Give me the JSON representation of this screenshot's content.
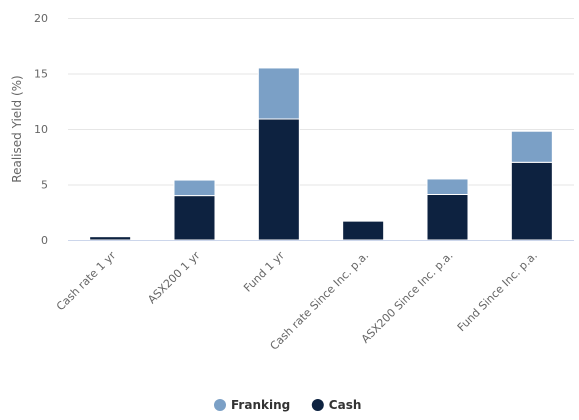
{
  "chart_data": {
    "type": "bar",
    "stacked": true,
    "title": "",
    "xlabel": "",
    "ylabel": "Realised Yield (%)",
    "ylim": [
      0,
      20
    ],
    "yticks": [
      "0",
      "5",
      "10",
      "15",
      "20"
    ],
    "categories": [
      "Cash rate 1 yr",
      "ASX200 1 yr",
      "Fund 1 yr",
      "Cash rate Since Inc. p.a.",
      "ASX200 Since Inc. p.a.",
      "Fund Since Inc. p.a."
    ],
    "series": [
      {
        "name": "Cash",
        "color": "#0d2240",
        "values": [
          0.3,
          4.0,
          10.9,
          1.7,
          4.1,
          7.0
        ]
      },
      {
        "name": "Franking",
        "color": "#7ba0c6",
        "values": [
          0.0,
          1.4,
          4.6,
          0.0,
          1.4,
          2.8
        ]
      }
    ],
    "legend": {
      "position": "bottom",
      "order": [
        "Franking",
        "Cash"
      ]
    },
    "grid": true,
    "colors": {
      "grid": "#e6e6e6",
      "axis": "#ccd6eb"
    }
  }
}
